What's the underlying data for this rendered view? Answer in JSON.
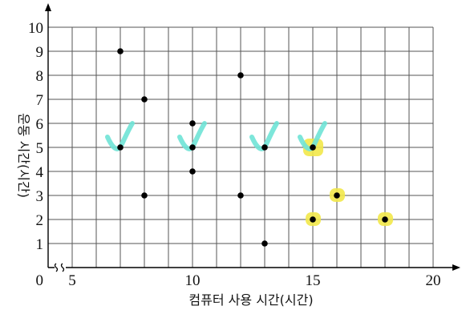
{
  "chart_data": {
    "type": "scatter",
    "xlabel": "컴퓨터 사용 시간(시간)",
    "ylabel": "운동 시간(시간)",
    "origin_label": "0",
    "x_ticks": [
      5,
      10,
      15,
      20
    ],
    "y_ticks": [
      1,
      2,
      3,
      4,
      5,
      6,
      7,
      8,
      9,
      10
    ],
    "xlim": [
      4,
      20
    ],
    "ylim": [
      0,
      10
    ],
    "x_axis_break": true,
    "grid": true,
    "points": [
      {
        "x": 7,
        "y": 9
      },
      {
        "x": 7,
        "y": 5
      },
      {
        "x": 8,
        "y": 7
      },
      {
        "x": 8,
        "y": 3
      },
      {
        "x": 10,
        "y": 6
      },
      {
        "x": 10,
        "y": 5
      },
      {
        "x": 10,
        "y": 4
      },
      {
        "x": 12,
        "y": 8
      },
      {
        "x": 12,
        "y": 3
      },
      {
        "x": 13,
        "y": 5
      },
      {
        "x": 13,
        "y": 1
      },
      {
        "x": 15,
        "y": 5
      },
      {
        "x": 15,
        "y": 2
      },
      {
        "x": 16,
        "y": 3
      },
      {
        "x": 18,
        "y": 2
      }
    ],
    "check_marks": [
      {
        "x": 7,
        "y": 5
      },
      {
        "x": 10,
        "y": 5
      },
      {
        "x": 13,
        "y": 5
      },
      {
        "x": 15,
        "y": 5
      }
    ],
    "highlighted_points": [
      {
        "x": 15,
        "y": 5
      },
      {
        "x": 15,
        "y": 2
      },
      {
        "x": 16,
        "y": 3
      },
      {
        "x": 18,
        "y": 2
      }
    ],
    "colors": {
      "point": "#000000",
      "check": "#6fe3d6",
      "highlight": "#f2e84a",
      "grid": "#555555"
    }
  }
}
